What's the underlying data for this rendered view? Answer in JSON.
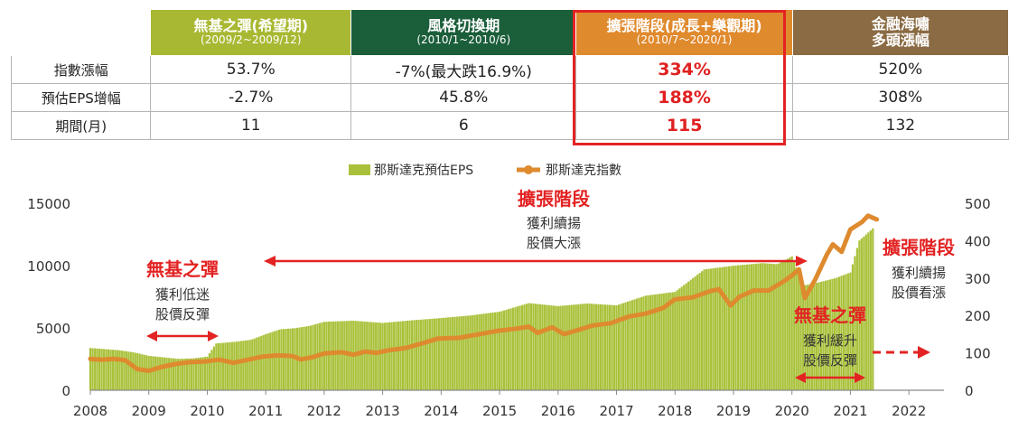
{
  "table": {
    "headers": [
      {
        "title": "無基之彈(希望期)",
        "sub": "(2009/2~2009/12)",
        "color": "#a9b832"
      },
      {
        "title": "風格切換期",
        "sub": "(2010/1~2010/6)",
        "color": "#1b5e3a"
      },
      {
        "title": "擴張階段(成長+樂觀期)",
        "sub": "(2010/7～2020/1)",
        "color": "#e08a2e"
      },
      {
        "title": "金融海嘯",
        "sub": "多頭漲幅",
        "color": "#8a6b43"
      }
    ],
    "rows": [
      {
        "label": "指數漲幅",
        "values": [
          "53.7%",
          "-7%(最大跌16.9%)",
          "334%",
          "520%"
        ]
      },
      {
        "label": "預估EPS增幅",
        "values": [
          "-2.7%",
          "45.8%",
          "188%",
          "308%"
        ]
      },
      {
        "label": "期間(月)",
        "values": [
          "11",
          "6",
          "115",
          "132"
        ]
      }
    ]
  },
  "chart_data": {
    "type": "bar+line",
    "legend": [
      "那斯達克預估EPS",
      "那斯達克指數"
    ],
    "legend_position": "top-center",
    "colors": {
      "eps": "#a9c13a",
      "index": "#de8a2e",
      "annotation": "#e32323"
    },
    "x_range": [
      2008,
      2022.6
    ],
    "x_ticks": [
      "2008",
      "2009",
      "2010",
      "2011",
      "2012",
      "2013",
      "2014",
      "2015",
      "2016",
      "2017",
      "2018",
      "2019",
      "2020",
      "2021",
      "2022"
    ],
    "y_left": {
      "range": [
        0,
        15000
      ],
      "ticks": [
        "0",
        "5000",
        "10000",
        "15000"
      ],
      "series": "那斯達克指數"
    },
    "y_right": {
      "range": [
        0,
        500
      ],
      "ticks": [
        "0",
        "100",
        "200",
        "300",
        "400",
        "500"
      ],
      "series": "那斯達克預估EPS"
    },
    "eps_points": [
      [
        2008.0,
        113
      ],
      [
        2008.25,
        110
      ],
      [
        2008.5,
        107
      ],
      [
        2008.75,
        101
      ],
      [
        2009.0,
        92
      ],
      [
        2009.25,
        88
      ],
      [
        2009.5,
        84
      ],
      [
        2009.75,
        85
      ],
      [
        2010.0,
        90
      ],
      [
        2010.15,
        125
      ],
      [
        2010.5,
        130
      ],
      [
        2010.75,
        135
      ],
      [
        2011.0,
        150
      ],
      [
        2011.25,
        163
      ],
      [
        2011.5,
        166
      ],
      [
        2011.75,
        172
      ],
      [
        2012.0,
        183
      ],
      [
        2012.5,
        186
      ],
      [
        2013.0,
        180
      ],
      [
        2013.5,
        187
      ],
      [
        2014.0,
        193
      ],
      [
        2014.5,
        200
      ],
      [
        2015.0,
        210
      ],
      [
        2015.5,
        233
      ],
      [
        2016.0,
        225
      ],
      [
        2016.5,
        232
      ],
      [
        2017.0,
        227
      ],
      [
        2017.5,
        253
      ],
      [
        2018.0,
        263
      ],
      [
        2018.5,
        323
      ],
      [
        2019.0,
        333
      ],
      [
        2019.5,
        340
      ],
      [
        2019.75,
        337
      ],
      [
        2020.0,
        358
      ],
      [
        2020.2,
        280
      ],
      [
        2020.5,
        290
      ],
      [
        2020.75,
        300
      ],
      [
        2021.0,
        315
      ],
      [
        2021.15,
        400
      ],
      [
        2021.4,
        435
      ]
    ],
    "index_points": [
      [
        2008.0,
        2520
      ],
      [
        2008.2,
        2450
      ],
      [
        2008.4,
        2520
      ],
      [
        2008.6,
        2400
      ],
      [
        2008.8,
        1700
      ],
      [
        2009.0,
        1560
      ],
      [
        2009.2,
        1850
      ],
      [
        2009.45,
        2100
      ],
      [
        2009.7,
        2250
      ],
      [
        2009.95,
        2300
      ],
      [
        2010.2,
        2450
      ],
      [
        2010.45,
        2200
      ],
      [
        2010.7,
        2450
      ],
      [
        2010.95,
        2700
      ],
      [
        2011.2,
        2800
      ],
      [
        2011.45,
        2750
      ],
      [
        2011.6,
        2480
      ],
      [
        2011.8,
        2650
      ],
      [
        2012.0,
        2950
      ],
      [
        2012.3,
        3050
      ],
      [
        2012.5,
        2850
      ],
      [
        2012.7,
        3100
      ],
      [
        2012.9,
        3000
      ],
      [
        2013.1,
        3200
      ],
      [
        2013.4,
        3400
      ],
      [
        2013.7,
        3800
      ],
      [
        2013.95,
        4150
      ],
      [
        2014.3,
        4200
      ],
      [
        2014.6,
        4450
      ],
      [
        2014.95,
        4750
      ],
      [
        2015.3,
        4950
      ],
      [
        2015.5,
        5100
      ],
      [
        2015.65,
        4600
      ],
      [
        2015.9,
        5050
      ],
      [
        2016.1,
        4500
      ],
      [
        2016.35,
        4850
      ],
      [
        2016.6,
        5200
      ],
      [
        2016.9,
        5380
      ],
      [
        2017.2,
        5900
      ],
      [
        2017.5,
        6150
      ],
      [
        2017.8,
        6600
      ],
      [
        2018.0,
        7300
      ],
      [
        2018.3,
        7450
      ],
      [
        2018.6,
        7950
      ],
      [
        2018.75,
        8100
      ],
      [
        2018.95,
        6800
      ],
      [
        2019.1,
        7500
      ],
      [
        2019.35,
        8000
      ],
      [
        2019.6,
        8000
      ],
      [
        2019.85,
        8700
      ],
      [
        2020.0,
        9200
      ],
      [
        2020.12,
        9700
      ],
      [
        2020.22,
        7400
      ],
      [
        2020.4,
        8900
      ],
      [
        2020.6,
        10900
      ],
      [
        2020.7,
        11700
      ],
      [
        2020.85,
        11100
      ],
      [
        2021.0,
        12900
      ],
      [
        2021.2,
        13500
      ],
      [
        2021.3,
        14000
      ],
      [
        2021.45,
        13700
      ]
    ],
    "annotations": [
      {
        "title": "擴張階段",
        "lines": [
          "獲利續揚",
          "股價大漲"
        ]
      },
      {
        "title": "無基之彈",
        "lines": [
          "獲利低迷",
          "股價反彈"
        ]
      },
      {
        "title": "擴張階段",
        "lines": [
          "獲利續揚",
          "股價看漲"
        ]
      },
      {
        "title": "無基之彈",
        "lines": [
          "獲利緩升",
          "股價反彈"
        ]
      }
    ]
  }
}
